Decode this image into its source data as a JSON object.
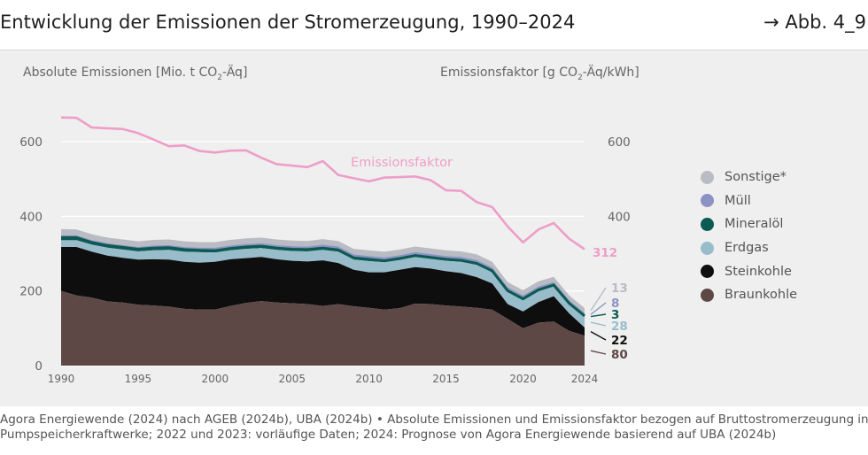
{
  "header": {
    "title": "Entwicklung der Emissionen der Stromerzeugung, 1990–2024",
    "figure_ref": "→ Abb. 4_9"
  },
  "axes": {
    "left_label_main": "Absolute Emissionen [Mio. t CO",
    "left_label_sub": "2",
    "left_label_end": "-Äq]",
    "right_label_main": "Emissionsfaktor [g CO",
    "right_label_sub": "2",
    "right_label_end": "-Äq/kWh]"
  },
  "colors": {
    "panel_bg": "#efefef",
    "Braunkohle": "#5e4846",
    "Steinkohle": "#0e0e0e",
    "Erdgas": "#99bccb",
    "Mineralöl": "#0c5a52",
    "Müll": "#8b93c4",
    "Sonstige": "#b9bcc2",
    "factor_line": "#ee9ec8",
    "grid": "#ffffff",
    "axis_text": "#666666"
  },
  "legend": [
    {
      "label": "Sonstige*",
      "key": "Sonstige"
    },
    {
      "label": "Müll",
      "key": "Müll"
    },
    {
      "label": "Mineralöl",
      "key": "Mineralöl"
    },
    {
      "label": "Erdgas",
      "key": "Erdgas"
    },
    {
      "label": "Steinkohle",
      "key": "Steinkohle"
    },
    {
      "label": "Braunkohle",
      "key": "Braunkohle"
    }
  ],
  "chart_data": {
    "type": "area",
    "title": "Entwicklung der Emissionen der Stromerzeugung, 1990–2024",
    "x": [
      1990,
      1991,
      1992,
      1993,
      1994,
      1995,
      1996,
      1997,
      1998,
      1999,
      2000,
      2001,
      2002,
      2003,
      2004,
      2005,
      2006,
      2007,
      2008,
      2009,
      2010,
      2011,
      2012,
      2013,
      2014,
      2015,
      2016,
      2017,
      2018,
      2019,
      2020,
      2021,
      2022,
      2023,
      2024
    ],
    "x_ticks": [
      1990,
      1995,
      2000,
      2005,
      2010,
      2015,
      2020,
      2024
    ],
    "y_left_ticks": [
      0,
      200,
      400,
      600
    ],
    "y_right_ticks": [
      400,
      600
    ],
    "ylim": [
      0,
      680
    ],
    "stacking_order": [
      "Braunkohle",
      "Steinkohle",
      "Erdgas",
      "Mineralöl",
      "Müll",
      "Sonstige"
    ],
    "series": [
      {
        "name": "Braunkohle",
        "values": [
          200,
          188,
          182,
          172,
          169,
          163,
          161,
          158,
          152,
          150,
          150,
          160,
          168,
          173,
          169,
          167,
          165,
          160,
          165,
          159,
          155,
          150,
          154,
          166,
          165,
          161,
          158,
          155,
          150,
          125,
          100,
          115,
          118,
          93,
          80
        ]
      },
      {
        "name": "Steinkohle",
        "values": [
          118,
          130,
          123,
          123,
          120,
          121,
          124,
          126,
          126,
          126,
          128,
          125,
          120,
          118,
          116,
          114,
          114,
          122,
          110,
          98,
          95,
          100,
          103,
          98,
          95,
          92,
          90,
          82,
          70,
          40,
          45,
          55,
          68,
          47,
          22
        ]
      },
      {
        "name": "Erdgas",
        "values": [
          18,
          18,
          19,
          21,
          22,
          22,
          24,
          26,
          27,
          28,
          25,
          24,
          25,
          24,
          25,
          26,
          27,
          28,
          30,
          27,
          30,
          27,
          26,
          27,
          26,
          28,
          30,
          33,
          30,
          32,
          30,
          29,
          26,
          24,
          28
        ]
      },
      {
        "name": "Mineralöl",
        "values": [
          7,
          7,
          6,
          6,
          6,
          6,
          6,
          6,
          6,
          5,
          5,
          5,
          5,
          5,
          5,
          5,
          5,
          5,
          5,
          5,
          5,
          4,
          4,
          4,
          4,
          4,
          4,
          4,
          4,
          4,
          4,
          4,
          4,
          3,
          3
        ]
      },
      {
        "name": "Müll",
        "values": [
          6,
          6,
          6,
          6,
          6,
          6,
          7,
          7,
          7,
          7,
          8,
          8,
          8,
          8,
          8,
          8,
          8,
          9,
          9,
          9,
          9,
          9,
          9,
          9,
          9,
          9,
          9,
          9,
          9,
          9,
          9,
          9,
          8,
          8,
          8
        ]
      },
      {
        "name": "Sonstige*",
        "values": [
          17,
          16,
          16,
          15,
          15,
          15,
          15,
          15,
          15,
          15,
          15,
          15,
          15,
          15,
          15,
          15,
          15,
          15,
          15,
          15,
          15,
          15,
          15,
          15,
          15,
          15,
          15,
          15,
          15,
          14,
          14,
          14,
          14,
          13,
          13
        ]
      },
      {
        "name": "Emissionsfaktor",
        "axis": "right",
        "values": [
          665,
          664,
          638,
          636,
          634,
          623,
          606,
          588,
          590,
          575,
          571,
          576,
          577,
          557,
          540,
          536,
          532,
          548,
          511,
          502,
          494,
          504,
          505,
          507,
          497,
          470,
          468,
          438,
          425,
          373,
          330,
          365,
          382,
          340,
          312
        ]
      }
    ],
    "series_label": "Emissionsfaktor",
    "end_labels": [
      {
        "key": "Sonstige",
        "text": "13"
      },
      {
        "key": "Müll",
        "text": "8"
      },
      {
        "key": "Mineralöl",
        "text": "3"
      },
      {
        "key": "Erdgas",
        "text": "28"
      },
      {
        "key": "Steinkohle",
        "text": "22"
      },
      {
        "key": "Braunkohle",
        "text": "80"
      },
      {
        "key": "factor_line",
        "text": "312"
      }
    ]
  },
  "footer": {
    "line1": "Agora Energiewende (2024) nach AGEB (2024b), UBA (2024b) • Absolute Emissionen und Emissionsfaktor bezogen auf Bruttostromerzeugung inkl.",
    "line2": "Pumpspeicherkraftwerke; 2022 und 2023: vorläufige Daten; 2024: Prognose von Agora Energiewende basierend auf UBA (2024b)"
  }
}
